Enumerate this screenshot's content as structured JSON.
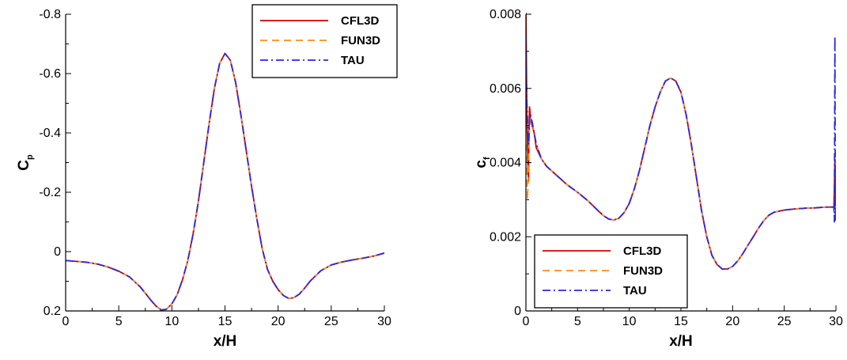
{
  "colors": {
    "cfl3d": "#d40000",
    "fun3d": "#ff8c1a",
    "tau": "#2828e6"
  },
  "chart_data": [
    {
      "type": "line",
      "xlabel": "x/H",
      "ylabel": "C",
      "ylabel_sub": "p",
      "xlim": [
        0,
        30
      ],
      "ylim": [
        0.2,
        -0.8
      ],
      "y_inverted": true,
      "xticks": [
        0,
        5,
        10,
        15,
        20,
        25,
        30
      ],
      "yticks": [
        0.2,
        0,
        -0.2,
        -0.4,
        -0.6,
        -0.8
      ],
      "xtick_labels": [
        "0",
        "5",
        "10",
        "15",
        "20",
        "25",
        "30"
      ],
      "ytick_labels": [
        "0.2",
        "0",
        "-0.2",
        "-0.4",
        "-0.6",
        "-0.8"
      ],
      "legend_position": "top-right",
      "grid": false,
      "series": [
        {
          "name": "CFL3D",
          "style": "solid",
          "x": [
            0,
            1,
            2,
            3,
            4,
            5,
            6,
            7,
            7.5,
            8,
            8.5,
            9,
            9.5,
            10,
            10.5,
            11,
            11.5,
            12,
            12.5,
            13,
            13.5,
            14,
            14.5,
            15,
            15.5,
            16,
            16.5,
            17,
            17.5,
            18,
            18.5,
            19,
            19.5,
            20,
            20.5,
            21,
            21.5,
            22,
            22.5,
            23,
            24,
            25,
            26,
            27,
            28,
            29,
            29.5,
            30
          ],
          "y": [
            0.03,
            0.033,
            0.036,
            0.042,
            0.052,
            0.066,
            0.085,
            0.118,
            0.14,
            0.163,
            0.183,
            0.197,
            0.194,
            0.176,
            0.145,
            0.095,
            0.03,
            -0.06,
            -0.17,
            -0.3,
            -0.43,
            -0.55,
            -0.635,
            -0.668,
            -0.645,
            -0.57,
            -0.46,
            -0.34,
            -0.22,
            -0.11,
            -0.01,
            0.06,
            0.1,
            0.128,
            0.148,
            0.158,
            0.155,
            0.143,
            0.123,
            0.1,
            0.065,
            0.045,
            0.035,
            0.028,
            0.022,
            0.015,
            0.01,
            0.005
          ]
        },
        {
          "name": "FUN3D",
          "style": "dashed",
          "x": [
            0,
            1,
            2,
            3,
            4,
            5,
            6,
            7,
            7.5,
            8,
            8.5,
            9,
            9.5,
            10,
            10.5,
            11,
            11.5,
            12,
            12.5,
            13,
            13.5,
            14,
            14.5,
            15,
            15.5,
            16,
            16.5,
            17,
            17.5,
            18,
            18.5,
            19,
            19.5,
            20,
            20.5,
            21,
            21.5,
            22,
            22.5,
            23,
            24,
            25,
            26,
            27,
            28,
            29,
            29.5,
            30
          ],
          "y": [
            0.03,
            0.033,
            0.036,
            0.042,
            0.052,
            0.066,
            0.085,
            0.118,
            0.14,
            0.163,
            0.183,
            0.197,
            0.194,
            0.176,
            0.145,
            0.095,
            0.03,
            -0.06,
            -0.17,
            -0.3,
            -0.43,
            -0.55,
            -0.635,
            -0.668,
            -0.645,
            -0.57,
            -0.46,
            -0.34,
            -0.22,
            -0.11,
            -0.01,
            0.06,
            0.1,
            0.128,
            0.148,
            0.158,
            0.155,
            0.143,
            0.123,
            0.1,
            0.065,
            0.045,
            0.035,
            0.028,
            0.022,
            0.015,
            0.01,
            0.005
          ]
        },
        {
          "name": "TAU",
          "style": "dashdot",
          "x": [
            0,
            1,
            2,
            3,
            4,
            5,
            6,
            7,
            7.5,
            8,
            8.5,
            9,
            9.5,
            10,
            10.5,
            11,
            11.5,
            12,
            12.5,
            13,
            13.5,
            14,
            14.5,
            15,
            15.5,
            16,
            16.5,
            17,
            17.5,
            18,
            18.5,
            19,
            19.5,
            20,
            20.5,
            21,
            21.5,
            22,
            22.5,
            23,
            24,
            25,
            26,
            27,
            28,
            29,
            29.5,
            30
          ],
          "y": [
            0.03,
            0.033,
            0.036,
            0.042,
            0.052,
            0.066,
            0.085,
            0.118,
            0.14,
            0.163,
            0.183,
            0.197,
            0.194,
            0.176,
            0.145,
            0.095,
            0.03,
            -0.06,
            -0.17,
            -0.3,
            -0.43,
            -0.55,
            -0.635,
            -0.668,
            -0.645,
            -0.57,
            -0.46,
            -0.34,
            -0.22,
            -0.11,
            -0.01,
            0.06,
            0.1,
            0.128,
            0.148,
            0.158,
            0.155,
            0.143,
            0.123,
            0.1,
            0.065,
            0.045,
            0.035,
            0.028,
            0.022,
            0.015,
            0.01,
            0.005
          ]
        }
      ]
    },
    {
      "type": "line",
      "xlabel": "x/H",
      "ylabel": "c",
      "ylabel_sub": "f",
      "xlim": [
        0,
        30
      ],
      "ylim": [
        0,
        0.008
      ],
      "y_inverted": false,
      "xticks": [
        0,
        5,
        10,
        15,
        20,
        25,
        30
      ],
      "yticks": [
        0,
        0.002,
        0.004,
        0.006,
        0.008
      ],
      "xtick_labels": [
        "0",
        "5",
        "10",
        "15",
        "20",
        "25",
        "30"
      ],
      "ytick_labels": [
        "0",
        "0.002",
        "0.004",
        "0.006",
        "0.008"
      ],
      "legend_position": "bottom-left",
      "grid": false,
      "series": [
        {
          "name": "CFL3D",
          "style": "solid",
          "x": [
            0,
            0.05,
            0.1,
            0.15,
            0.2,
            0.25,
            0.3,
            0.35,
            0.45,
            0.6,
            0.8,
            1,
            1.5,
            2,
            3,
            4,
            5,
            6,
            7,
            7.5,
            8,
            8.5,
            9,
            9.5,
            10,
            10.5,
            11,
            11.5,
            12,
            12.5,
            13,
            13.5,
            14,
            14.5,
            15,
            15.5,
            16,
            16.5,
            17,
            17.5,
            18,
            18.5,
            19,
            19.5,
            20,
            20.5,
            21,
            21.5,
            22,
            22.5,
            23,
            23.5,
            24,
            25,
            26,
            27,
            28,
            29,
            29.8,
            29.85,
            29.9,
            29.95,
            30
          ],
          "y": [
            0.0081,
            0.0066,
            0.0052,
            0.0046,
            0.0039,
            0.0035,
            0.0048,
            0.0055,
            0.0052,
            0.005,
            0.0048,
            0.0044,
            0.0041,
            0.0039,
            0.00365,
            0.0034,
            0.0032,
            0.00297,
            0.0027,
            0.00257,
            0.00248,
            0.00245,
            0.0025,
            0.00265,
            0.0029,
            0.0033,
            0.0038,
            0.0044,
            0.005,
            0.0055,
            0.0059,
            0.0062,
            0.00628,
            0.0062,
            0.0059,
            0.0053,
            0.0045,
            0.0036,
            0.0027,
            0.002,
            0.0015,
            0.00125,
            0.00113,
            0.00113,
            0.0012,
            0.00135,
            0.00155,
            0.00178,
            0.002,
            0.00223,
            0.00243,
            0.00258,
            0.00266,
            0.00272,
            0.00275,
            0.00277,
            0.00278,
            0.0028,
            0.0028,
            0.0033,
            0.0041,
            0.0033,
            0.0028
          ]
        },
        {
          "name": "FUN3D",
          "style": "dashed",
          "x": [
            0,
            0.05,
            0.1,
            0.15,
            0.2,
            0.25,
            0.3,
            0.35,
            0.45,
            0.6,
            0.8,
            1,
            1.5,
            2,
            3,
            4,
            5,
            6,
            7,
            7.5,
            8,
            8.5,
            9,
            9.5,
            10,
            10.5,
            11,
            11.5,
            12,
            12.5,
            13,
            13.5,
            14,
            14.5,
            15,
            15.5,
            16,
            16.5,
            17,
            17.5,
            18,
            18.5,
            19,
            19.5,
            20,
            20.5,
            21,
            21.5,
            22,
            22.5,
            23,
            23.5,
            24,
            25,
            26,
            27,
            28,
            29,
            30
          ],
          "y": [
            0.0045,
            0.0042,
            0.0036,
            0.003,
            0.0034,
            0.0039,
            0.0046,
            0.005,
            0.0052,
            0.0051,
            0.0048,
            0.0045,
            0.0041,
            0.0039,
            0.00365,
            0.0034,
            0.0032,
            0.00297,
            0.0027,
            0.00257,
            0.00248,
            0.00245,
            0.0025,
            0.00265,
            0.0029,
            0.0033,
            0.0038,
            0.0044,
            0.005,
            0.0055,
            0.0059,
            0.0062,
            0.00628,
            0.0062,
            0.0059,
            0.0053,
            0.0045,
            0.0036,
            0.0027,
            0.002,
            0.0015,
            0.00125,
            0.00113,
            0.00113,
            0.0012,
            0.00135,
            0.00155,
            0.00178,
            0.002,
            0.00223,
            0.00243,
            0.00258,
            0.00266,
            0.00272,
            0.00275,
            0.00277,
            0.00278,
            0.0028,
            0.0028
          ]
        },
        {
          "name": "TAU",
          "style": "dashdot",
          "x": [
            0,
            0.05,
            0.1,
            0.15,
            0.2,
            0.25,
            0.3,
            0.35,
            0.45,
            0.6,
            0.8,
            1,
            1.5,
            2,
            3,
            4,
            5,
            6,
            7,
            7.5,
            8,
            8.5,
            9,
            9.5,
            10,
            10.5,
            11,
            11.5,
            12,
            12.5,
            13,
            13.5,
            14,
            14.5,
            15,
            15.5,
            16,
            16.5,
            17,
            17.5,
            18,
            18.5,
            19,
            19.5,
            20,
            20.5,
            21,
            21.5,
            22,
            22.5,
            23,
            23.5,
            24,
            25,
            26,
            27,
            28,
            29,
            29.8,
            29.85,
            29.9,
            29.95,
            30
          ],
          "y": [
            0.0074,
            0.0062,
            0.0056,
            0.0052,
            0.0048,
            0.0045,
            0.0047,
            0.0052,
            0.0053,
            0.0051,
            0.0048,
            0.0045,
            0.0041,
            0.0039,
            0.00365,
            0.0034,
            0.0032,
            0.00297,
            0.0027,
            0.00257,
            0.00248,
            0.00245,
            0.0025,
            0.00265,
            0.0029,
            0.0033,
            0.0038,
            0.0044,
            0.005,
            0.0055,
            0.0059,
            0.0062,
            0.00628,
            0.0062,
            0.0059,
            0.0053,
            0.0045,
            0.0036,
            0.0027,
            0.002,
            0.0015,
            0.00125,
            0.00113,
            0.00113,
            0.0012,
            0.00135,
            0.00155,
            0.00178,
            0.002,
            0.00223,
            0.00243,
            0.00258,
            0.00266,
            0.00272,
            0.00275,
            0.00277,
            0.00278,
            0.0028,
            0.0028,
            0.0024,
            0.0074,
            0.0024,
            0.0028
          ]
        }
      ]
    }
  ]
}
